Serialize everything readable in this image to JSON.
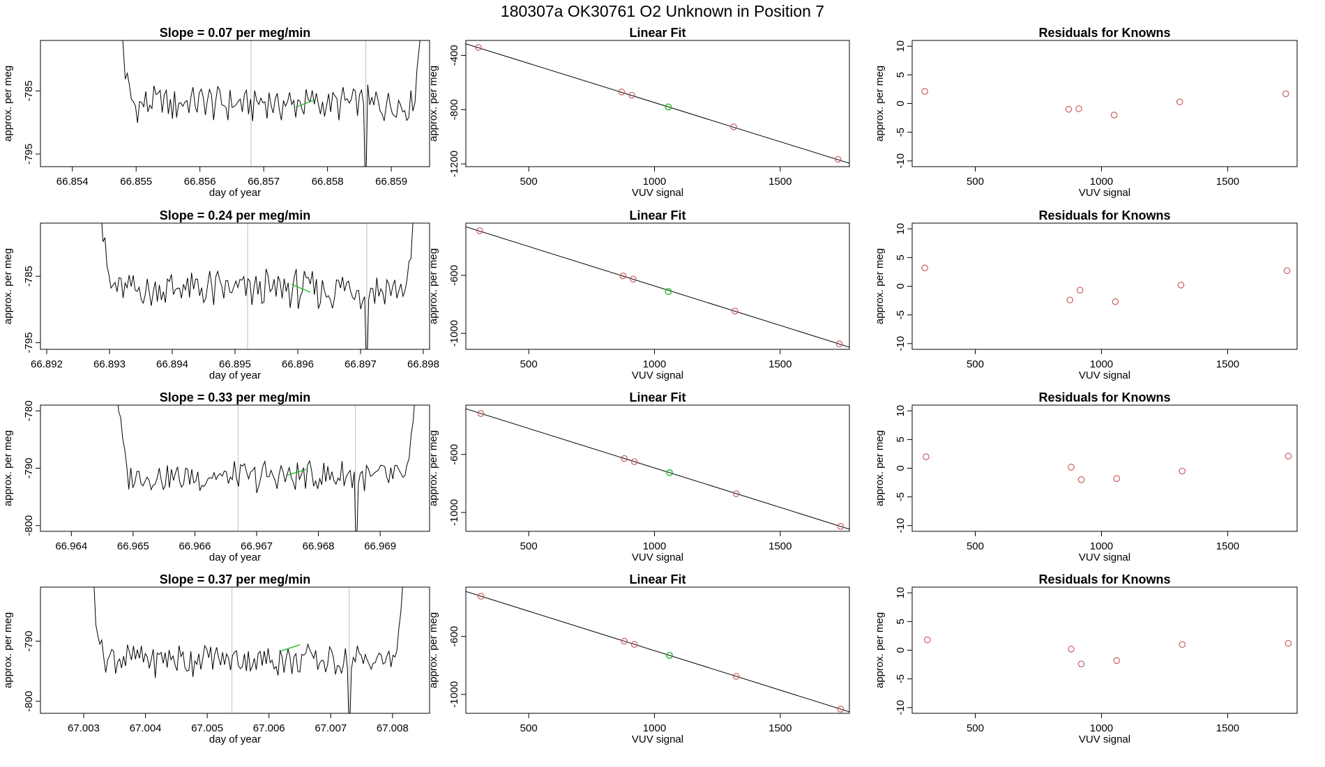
{
  "figure": {
    "title": "180307a      OK30761    O2 Unknown in Position  7"
  },
  "colors": {
    "trace": "#000000",
    "known_point": "#cd5c5c",
    "unknown_point": "#22bb22",
    "marker_line": "#c8c8c8",
    "frame": "#000000"
  },
  "chart_data": [
    {
      "type": "line",
      "title": "Slope =  0.07  per meg/min",
      "xlabel": "day of year",
      "ylabel": "approx. per meg",
      "xlim": [
        66.8535,
        66.8596
      ],
      "ylim": [
        -797,
        -777
      ],
      "xticks": [
        66.854,
        66.855,
        66.856,
        66.857,
        66.858,
        66.859
      ],
      "xtick_labels": [
        "66.854",
        "66.855",
        "66.856",
        "66.857",
        "66.858",
        "66.859"
      ],
      "yticks": [
        -785,
        -795
      ],
      "ytick_labels": [
        "-785",
        "-795"
      ],
      "trace": {
        "x_start": 66.8547,
        "x_end": 66.8595,
        "base": -787,
        "amp": 3.2,
        "n": 150
      },
      "markers_x": [
        66.8568,
        66.8586
      ],
      "unknown_x": [
        66.8575,
        66.8578
      ],
      "unknown_y": [
        -787.6,
        -786.4
      ]
    },
    {
      "type": "line",
      "title": "Slope =  0.24  per meg/min",
      "xlabel": "day of year",
      "ylabel": "approx. per meg",
      "xlim": [
        66.8919,
        66.8981
      ],
      "ylim": [
        -796,
        -777
      ],
      "xticks": [
        66.892,
        66.893,
        66.894,
        66.895,
        66.896,
        66.897,
        66.898
      ],
      "xtick_labels": [
        "66.892",
        "66.893",
        "66.894",
        "66.895",
        "66.896",
        "66.897",
        "66.898"
      ],
      "yticks": [
        -785,
        -795
      ],
      "ytick_labels": [
        "-785",
        "-795"
      ],
      "trace": {
        "x_start": 66.8928,
        "x_end": 66.8979,
        "base": -787,
        "amp": 3.4,
        "n": 160
      },
      "markers_x": [
        66.8952,
        66.8971
      ],
      "unknown_x": [
        66.8959,
        66.8962
      ],
      "unknown_y": [
        -786.2,
        -787.4
      ]
    },
    {
      "type": "line",
      "title": "Slope =  0.33  per meg/min",
      "xlabel": "day of year",
      "ylabel": "approx. per meg",
      "xlim": [
        66.9635,
        66.9698
      ],
      "ylim": [
        -801,
        -779
      ],
      "xticks": [
        66.964,
        66.965,
        66.966,
        66.967,
        66.968,
        66.969
      ],
      "xtick_labels": [
        "66.964",
        "66.965",
        "66.966",
        "66.967",
        "66.968",
        "66.969"
      ],
      "yticks": [
        -780,
        -790,
        -800
      ],
      "ytick_labels": [
        "-780",
        "-790",
        "-800"
      ],
      "trace": {
        "x_start": 66.9647,
        "x_end": 66.9696,
        "base": -791.5,
        "amp": 3.1,
        "n": 150
      },
      "markers_x": [
        66.9667,
        66.9686
      ],
      "unknown_x": [
        66.9675,
        66.9678
      ],
      "unknown_y": [
        -791.2,
        -790.2
      ]
    },
    {
      "type": "line",
      "title": "Slope =  0.37  per meg/min",
      "xlabel": "day of year",
      "ylabel": "approx. per meg",
      "xlim": [
        67.0023,
        67.0086
      ],
      "ylim": [
        -802,
        -781
      ],
      "xticks": [
        67.003,
        67.004,
        67.005,
        67.006,
        67.007,
        67.008
      ],
      "xtick_labels": [
        "67.003",
        "67.004",
        "67.005",
        "67.006",
        "67.007",
        "67.008"
      ],
      "yticks": [
        -790,
        -800
      ],
      "ytick_labels": [
        "-790",
        "-800"
      ],
      "trace": {
        "x_start": 67.0031,
        "x_end": 67.0082,
        "base": -793,
        "amp": 3.2,
        "n": 160
      },
      "markers_x": [
        67.0054,
        67.0073
      ],
      "unknown_x": [
        67.0062,
        67.0065
      ],
      "unknown_y": [
        -791.6,
        -790.6
      ]
    },
    {
      "type": "scatter",
      "title": "Linear Fit",
      "xlabel": "VUV signal",
      "ylabel": "approx. per meg",
      "xlim": [
        250,
        1775
      ],
      "ylim": [
        -1220,
        -290
      ],
      "xticks": [
        500,
        1000,
        1500
      ],
      "xtick_labels": [
        "500",
        "1000",
        "1500"
      ],
      "yticks": [
        -400,
        -800,
        -1200
      ],
      "ytick_labels": [
        "-400",
        "-800",
        "-1200"
      ],
      "fit_line": {
        "x": [
          250,
          1775
        ],
        "y": [
          -315,
          -1195
        ]
      },
      "known_x": [
        300,
        870,
        910,
        1315,
        1730
      ],
      "known_y": [
        -342,
        -670,
        -694,
        -927,
        -1166
      ],
      "unknown_x": [
        1055
      ],
      "unknown_y": [
        -780
      ]
    },
    {
      "type": "scatter",
      "title": "Linear Fit",
      "xlabel": "VUV signal",
      "ylabel": "approx. per meg",
      "xlim": [
        250,
        1775
      ],
      "ylim": [
        -1110,
        -240
      ],
      "xticks": [
        500,
        1000,
        1500
      ],
      "xtick_labels": [
        "500",
        "1000",
        "1500"
      ],
      "yticks": [
        -600,
        -1000
      ],
      "ytick_labels": [
        "-600",
        "-1000"
      ],
      "fit_line": {
        "x": [
          250,
          1775
        ],
        "y": [
          -265,
          -1095
        ]
      },
      "known_x": [
        305,
        875,
        915,
        1320,
        1735
      ],
      "known_y": [
        -293,
        -604,
        -626,
        -846,
        -1072
      ],
      "unknown_x": [
        1055
      ],
      "unknown_y": [
        -711
      ]
    },
    {
      "type": "scatter",
      "title": "Linear Fit",
      "xlabel": "VUV signal",
      "ylabel": "approx. per meg",
      "xlim": [
        250,
        1775
      ],
      "ylim": [
        -1130,
        -260
      ],
      "xticks": [
        500,
        1000,
        1500
      ],
      "xtick_labels": [
        "500",
        "1000",
        "1500"
      ],
      "yticks": [
        -600,
        -1000
      ],
      "ytick_labels": [
        "-600",
        "-1000"
      ],
      "fit_line": {
        "x": [
          250,
          1775
        ],
        "y": [
          -285,
          -1115
        ]
      },
      "known_x": [
        310,
        880,
        920,
        1325,
        1740
      ],
      "known_y": [
        -318,
        -628,
        -650,
        -871,
        -1096
      ],
      "unknown_x": [
        1060
      ],
      "unknown_y": [
        -726
      ]
    },
    {
      "type": "scatter",
      "title": "Linear Fit",
      "xlabel": "VUV signal",
      "ylabel": "approx. per meg",
      "xlim": [
        250,
        1775
      ],
      "ylim": [
        -1130,
        -260
      ],
      "xticks": [
        500,
        1000,
        1500
      ],
      "xtick_labels": [
        "500",
        "1000",
        "1500"
      ],
      "yticks": [
        -600,
        -1000
      ],
      "ytick_labels": [
        "-600",
        "-1000"
      ],
      "fit_line": {
        "x": [
          250,
          1775
        ],
        "y": [
          -290,
          -1120
        ]
      },
      "known_x": [
        310,
        880,
        920,
        1325,
        1740
      ],
      "known_y": [
        -323,
        -633,
        -655,
        -876,
        -1101
      ],
      "unknown_x": [
        1060
      ],
      "unknown_y": [
        -731
      ]
    },
    {
      "type": "scatter",
      "title": "Residuals for Knowns",
      "xlabel": "VUV signal",
      "ylabel": "approx. per meg",
      "xlim": [
        250,
        1775
      ],
      "ylim": [
        -11,
        11
      ],
      "xticks": [
        500,
        1000,
        1500
      ],
      "xtick_labels": [
        "500",
        "1000",
        "1500"
      ],
      "yticks": [
        10,
        5,
        0,
        -5,
        -10
      ],
      "ytick_labels": [
        "10",
        "5",
        "0",
        "-5",
        "-10"
      ],
      "known_x": [
        300,
        870,
        910,
        1050,
        1310,
        1730
      ],
      "known_y": [
        2.1,
        -1.0,
        -0.9,
        -2.0,
        0.3,
        1.7
      ]
    },
    {
      "type": "scatter",
      "title": "Residuals for Knowns",
      "xlabel": "VUV signal",
      "ylabel": "approx. per meg",
      "xlim": [
        250,
        1775
      ],
      "ylim": [
        -11,
        11
      ],
      "xticks": [
        500,
        1000,
        1500
      ],
      "xtick_labels": [
        "500",
        "1000",
        "1500"
      ],
      "yticks": [
        10,
        5,
        0,
        -5,
        -10
      ],
      "ytick_labels": [
        "10",
        "5",
        "0",
        "-5",
        "-10"
      ],
      "known_x": [
        300,
        875,
        915,
        1055,
        1315,
        1735
      ],
      "known_y": [
        3.2,
        -2.4,
        -0.7,
        -2.7,
        0.2,
        2.7
      ]
    },
    {
      "type": "scatter",
      "title": "Residuals for Knowns",
      "xlabel": "VUV signal",
      "ylabel": "approx. per meg",
      "xlim": [
        250,
        1775
      ],
      "ylim": [
        -11,
        11
      ],
      "xticks": [
        500,
        1000,
        1500
      ],
      "xtick_labels": [
        "500",
        "1000",
        "1500"
      ],
      "yticks": [
        10,
        5,
        0,
        -5,
        -10
      ],
      "ytick_labels": [
        "10",
        "5",
        "0",
        "-5",
        "-10"
      ],
      "known_x": [
        305,
        880,
        920,
        1060,
        1320,
        1740
      ],
      "known_y": [
        2.0,
        0.2,
        -2.0,
        -1.8,
        -0.5,
        2.1
      ]
    },
    {
      "type": "scatter",
      "title": "Residuals for Knowns",
      "xlabel": "VUV signal",
      "ylabel": "approx. per meg",
      "xlim": [
        250,
        1775
      ],
      "ylim": [
        -11,
        11
      ],
      "xticks": [
        500,
        1000,
        1500
      ],
      "xtick_labels": [
        "500",
        "1000",
        "1500"
      ],
      "yticks": [
        10,
        5,
        0,
        -5,
        -10
      ],
      "ytick_labels": [
        "10",
        "5",
        "0",
        "-5",
        "-10"
      ],
      "known_x": [
        310,
        880,
        920,
        1060,
        1320,
        1740
      ],
      "known_y": [
        1.8,
        0.2,
        -2.4,
        -1.8,
        1.0,
        1.2
      ]
    }
  ]
}
